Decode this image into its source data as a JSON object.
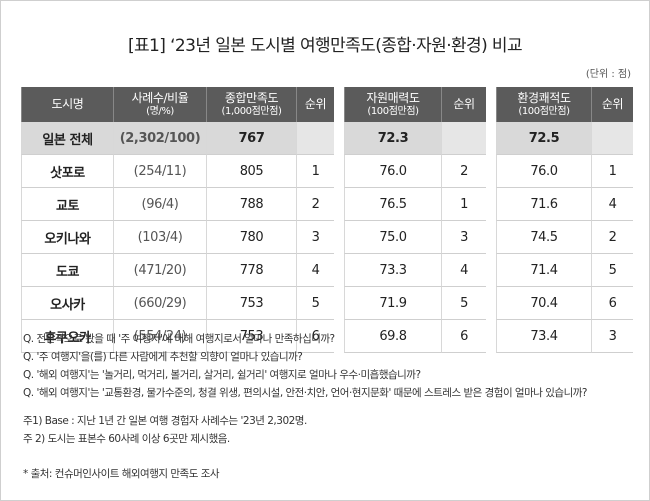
{
  "title": "[표1] ‘23년 일본 도시별 여행만족도(종합·자원·환경) 비교",
  "unit": "(단위 : 점)",
  "table": {
    "headers": [
      [
        "도시명"
      ],
      [
        "사례수/비율",
        "(명/%)"
      ],
      [
        "종합만족도",
        "(1,000점만점)"
      ],
      [
        "순위"
      ],
      [
        "자원매력도",
        "(100점만점)"
      ],
      [
        "순위"
      ],
      [
        "환경쾌적도",
        "(100점만점)"
      ],
      [
        "순위"
      ]
    ],
    "rows": [
      [
        "일본 전체",
        "(2,302/100)",
        "767",
        null,
        "72.3",
        null,
        "72.5",
        null
      ],
      [
        "삿포로",
        "(254/11)",
        "805",
        "1",
        "76.0",
        "2",
        "76.0",
        "1"
      ],
      [
        "교토",
        "(96/4)",
        "788",
        "2",
        "76.5",
        "1",
        "71.6",
        "4"
      ],
      [
        "오키나와",
        "(103/4)",
        "780",
        "3",
        "75.0",
        "3",
        "74.5",
        "2"
      ],
      [
        "도쿄",
        "(471/20)",
        "778",
        "4",
        "73.3",
        "4",
        "71.4",
        "5"
      ],
      [
        "오사카",
        "(660/29)",
        "753",
        "5",
        "71.9",
        "5",
        "70.4",
        "6"
      ],
      [
        "후쿠오카",
        "(554/24)",
        "753",
        "6",
        "69.8",
        "6",
        "73.4",
        "3"
      ]
    ]
  },
  "notes": [
    "Q. 전반적으로 봤을 때 '주 여행지'에 대해 여행지로서 얼마나 만족하십니까?",
    "Q. '주 여행지'을(를) 다른 사람에게 추천할 의향이 얼마나 있습니까?",
    "Q. '해외 여행지'는 '놀거리, 먹거리, 볼거리, 살거리, 쉴거리' 여행지로 얼마나 우수·미흡했습니까?",
    "Q. '해외 여행지'는 '교통환경, 물가수준의, 청결 위생, 편의시설, 안전·치안, 언어·현지문화' 때문에 스트레스 받은 경험이 얼마나 있습니까?"
  ],
  "footnotes": [
    "주1) Base : 지난 1년 간 일본 여행 경험자 사례수는 '23년 2,302명.",
    "주 2) 도시는 표본수 60사례 이상 6곳만 제시했음."
  ],
  "source": "* 출처: 컨슈머인사이트 해외여행지 만족도 조사"
}
